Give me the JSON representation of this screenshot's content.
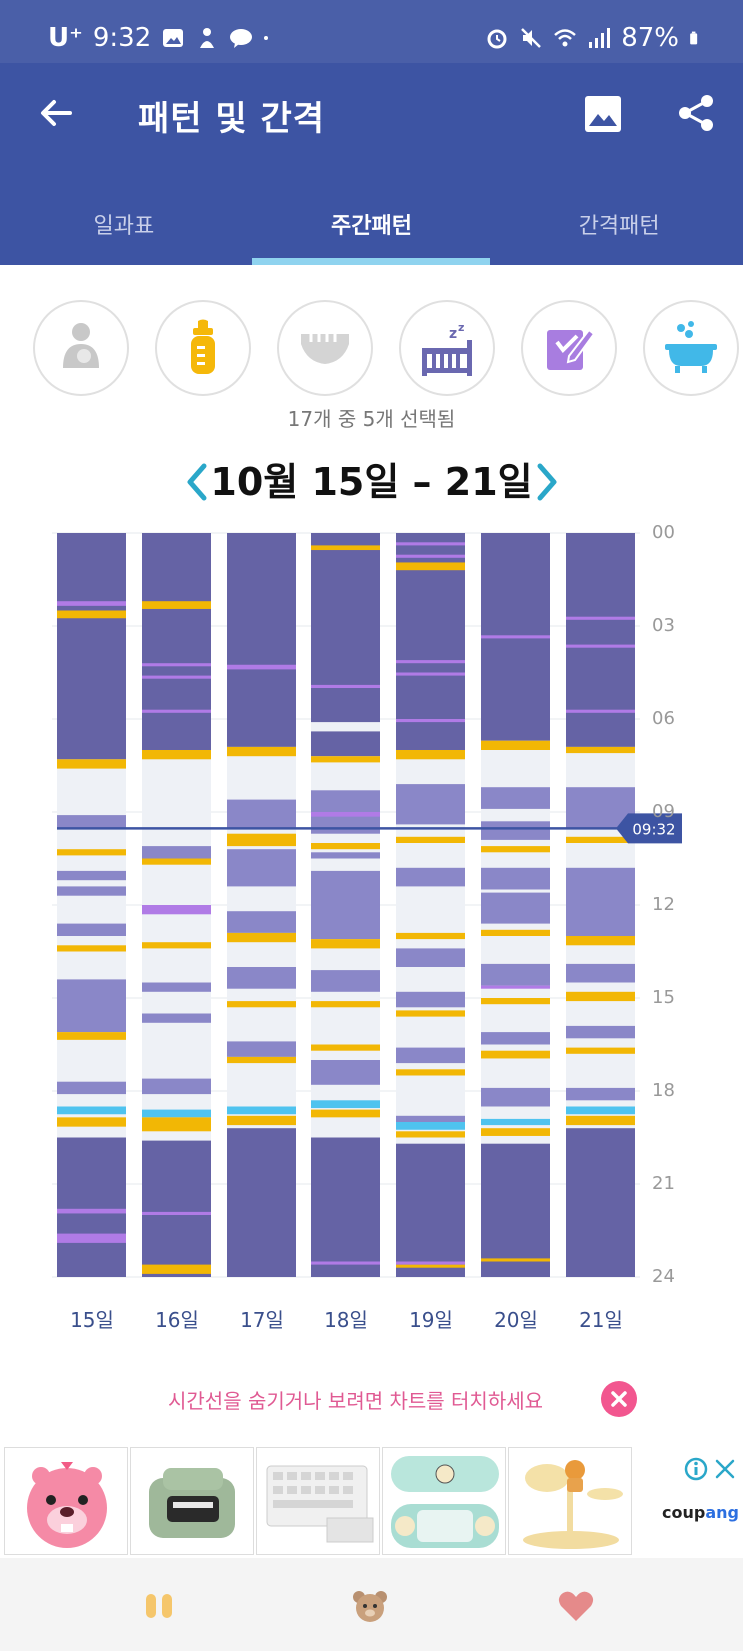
{
  "status_bar": {
    "carrier": "U⁺",
    "time": "9:32",
    "battery": "87%"
  },
  "app_bar": {
    "title": "패턴 및 간격",
    "tabs": [
      {
        "label": "일과표",
        "active": false
      },
      {
        "label": "주간패턴",
        "active": true
      },
      {
        "label": "간격패턴",
        "active": false
      }
    ]
  },
  "categories": [
    {
      "icon": "nursing-icon",
      "selected": false
    },
    {
      "icon": "bottle-icon",
      "selected": true,
      "color": "#f5b80a"
    },
    {
      "icon": "diaper-icon",
      "selected": false
    },
    {
      "icon": "sleep-icon",
      "selected": true,
      "color": "#6a68b0"
    },
    {
      "icon": "note-icon",
      "selected": true,
      "color": "#a87de0"
    },
    {
      "icon": "bath-icon",
      "selected": true,
      "color": "#41b8e8"
    }
  ],
  "selection_count": "17개 중 5개 선택됨",
  "week_range": "10월 15일 – 21일",
  "chart_data": {
    "type": "timeline",
    "y_axis_labels": [
      "00",
      "03",
      "06",
      "09",
      "12",
      "15",
      "18",
      "21",
      "24"
    ],
    "y_range_hours": [
      0,
      24
    ],
    "current_time_label": "09:32",
    "current_time_hours": 9.53,
    "days": [
      "15일",
      "16일",
      "17일",
      "18일",
      "19일",
      "20일",
      "21일"
    ],
    "colors": {
      "sleep": "#6563a5",
      "sleep_light": "#8a87c8",
      "feed": "#f2b705",
      "note": "#b07be6",
      "bath": "#4fc3ef",
      "empty": "#eef1f6"
    },
    "columns": [
      {
        "day": "15일",
        "segments": [
          {
            "type": "sleep",
            "start": 0,
            "end": 7.3
          },
          {
            "type": "note",
            "start": 2.2,
            "end": 2.35
          },
          {
            "type": "feed",
            "start": 2.5,
            "end": 2.75
          },
          {
            "type": "feed",
            "start": 7.3,
            "end": 7.6
          },
          {
            "type": "sleep_light",
            "start": 9.1,
            "end": 9.5
          },
          {
            "type": "feed",
            "start": 10.2,
            "end": 10.4
          },
          {
            "type": "sleep_light",
            "start": 10.9,
            "end": 11.2
          },
          {
            "type": "sleep_light",
            "start": 11.4,
            "end": 11.7
          },
          {
            "type": "sleep_light",
            "start": 12.6,
            "end": 13.0
          },
          {
            "type": "feed",
            "start": 13.3,
            "end": 13.5
          },
          {
            "type": "sleep_light",
            "start": 14.4,
            "end": 16.1
          },
          {
            "type": "feed",
            "start": 16.1,
            "end": 16.35
          },
          {
            "type": "sleep_light",
            "start": 17.7,
            "end": 18.1
          },
          {
            "type": "bath",
            "start": 18.5,
            "end": 18.75
          },
          {
            "type": "feed",
            "start": 18.85,
            "end": 19.15
          },
          {
            "type": "sleep",
            "start": 19.5,
            "end": 24
          },
          {
            "type": "note",
            "start": 21.8,
            "end": 21.95
          },
          {
            "type": "note",
            "start": 22.6,
            "end": 22.9
          }
        ]
      },
      {
        "day": "16일",
        "segments": [
          {
            "type": "sleep",
            "start": 0,
            "end": 7.0
          },
          {
            "type": "feed",
            "start": 2.2,
            "end": 2.45
          },
          {
            "type": "note",
            "start": 4.2,
            "end": 4.3
          },
          {
            "type": "note",
            "start": 4.6,
            "end": 4.7
          },
          {
            "type": "note",
            "start": 5.7,
            "end": 5.8
          },
          {
            "type": "feed",
            "start": 7.0,
            "end": 7.3
          },
          {
            "type": "sleep_light",
            "start": 10.1,
            "end": 10.5
          },
          {
            "type": "feed",
            "start": 10.5,
            "end": 10.7
          },
          {
            "type": "note",
            "start": 12.0,
            "end": 12.3
          },
          {
            "type": "feed",
            "start": 13.2,
            "end": 13.4
          },
          {
            "type": "sleep_light",
            "start": 14.5,
            "end": 14.8
          },
          {
            "type": "sleep_light",
            "start": 15.5,
            "end": 15.8
          },
          {
            "type": "sleep_light",
            "start": 17.6,
            "end": 18.1
          },
          {
            "type": "bath",
            "start": 18.6,
            "end": 18.85
          },
          {
            "type": "feed",
            "start": 18.85,
            "end": 19.3
          },
          {
            "type": "sleep",
            "start": 19.6,
            "end": 24
          },
          {
            "type": "note",
            "start": 21.9,
            "end": 22.0
          },
          {
            "type": "feed",
            "start": 23.6,
            "end": 23.9
          }
        ]
      },
      {
        "day": "17일",
        "segments": [
          {
            "type": "sleep",
            "start": 0,
            "end": 6.9
          },
          {
            "type": "note",
            "start": 4.25,
            "end": 4.4
          },
          {
            "type": "feed",
            "start": 6.9,
            "end": 7.2
          },
          {
            "type": "sleep_light",
            "start": 8.6,
            "end": 9.5
          },
          {
            "type": "feed",
            "start": 9.7,
            "end": 10.1
          },
          {
            "type": "sleep_light",
            "start": 10.2,
            "end": 11.4
          },
          {
            "type": "sleep_light",
            "start": 12.2,
            "end": 12.9
          },
          {
            "type": "feed",
            "start": 12.9,
            "end": 13.2
          },
          {
            "type": "sleep_light",
            "start": 14.0,
            "end": 14.7
          },
          {
            "type": "feed",
            "start": 15.1,
            "end": 15.3
          },
          {
            "type": "sleep_light",
            "start": 16.4,
            "end": 16.9
          },
          {
            "type": "feed",
            "start": 16.9,
            "end": 17.1
          },
          {
            "type": "bath",
            "start": 18.5,
            "end": 18.75
          },
          {
            "type": "feed",
            "start": 18.8,
            "end": 19.1
          },
          {
            "type": "sleep",
            "start": 19.2,
            "end": 24
          }
        ]
      },
      {
        "day": "18일",
        "segments": [
          {
            "type": "sleep",
            "start": 0,
            "end": 6.1
          },
          {
            "type": "feed",
            "start": 0.4,
            "end": 0.55
          },
          {
            "type": "note",
            "start": 4.9,
            "end": 5.0
          },
          {
            "type": "sleep",
            "start": 6.4,
            "end": 7.2
          },
          {
            "type": "feed",
            "start": 7.2,
            "end": 7.4
          },
          {
            "type": "sleep_light",
            "start": 8.3,
            "end": 9.7
          },
          {
            "type": "note",
            "start": 9.0,
            "end": 9.15
          },
          {
            "type": "feed",
            "start": 10.0,
            "end": 10.2
          },
          {
            "type": "sleep_light",
            "start": 10.3,
            "end": 10.5
          },
          {
            "type": "sleep_light",
            "start": 10.9,
            "end": 13.1
          },
          {
            "type": "feed",
            "start": 13.1,
            "end": 13.4
          },
          {
            "type": "sleep_light",
            "start": 14.1,
            "end": 14.8
          },
          {
            "type": "feed",
            "start": 15.1,
            "end": 15.3
          },
          {
            "type": "feed",
            "start": 16.5,
            "end": 16.7
          },
          {
            "type": "sleep_light",
            "start": 17.0,
            "end": 17.8
          },
          {
            "type": "bath",
            "start": 18.3,
            "end": 18.55
          },
          {
            "type": "feed",
            "start": 18.6,
            "end": 18.85
          },
          {
            "type": "sleep",
            "start": 19.5,
            "end": 24
          },
          {
            "type": "note",
            "start": 23.5,
            "end": 23.6
          }
        ]
      },
      {
        "day": "19일",
        "segments": [
          {
            "type": "sleep",
            "start": 0,
            "end": 7.0
          },
          {
            "type": "note",
            "start": 0.3,
            "end": 0.4
          },
          {
            "type": "note",
            "start": 0.7,
            "end": 0.8
          },
          {
            "type": "feed",
            "start": 0.95,
            "end": 1.2
          },
          {
            "type": "note",
            "start": 4.1,
            "end": 4.2
          },
          {
            "type": "note",
            "start": 4.5,
            "end": 4.6
          },
          {
            "type": "note",
            "start": 6.0,
            "end": 6.1
          },
          {
            "type": "feed",
            "start": 7.0,
            "end": 7.3
          },
          {
            "type": "sleep_light",
            "start": 8.1,
            "end": 9.4
          },
          {
            "type": "feed",
            "start": 9.8,
            "end": 10.0
          },
          {
            "type": "sleep_light",
            "start": 10.8,
            "end": 11.4
          },
          {
            "type": "feed",
            "start": 12.9,
            "end": 13.1
          },
          {
            "type": "sleep_light",
            "start": 13.4,
            "end": 14.0
          },
          {
            "type": "sleep_light",
            "start": 14.8,
            "end": 15.3
          },
          {
            "type": "feed",
            "start": 15.4,
            "end": 15.6
          },
          {
            "type": "sleep_light",
            "start": 16.6,
            "end": 17.1
          },
          {
            "type": "feed",
            "start": 17.3,
            "end": 17.5
          },
          {
            "type": "sleep_light",
            "start": 18.8,
            "end": 19.0
          },
          {
            "type": "bath",
            "start": 19.0,
            "end": 19.25
          },
          {
            "type": "feed",
            "start": 19.3,
            "end": 19.5
          },
          {
            "type": "sleep",
            "start": 19.7,
            "end": 24
          },
          {
            "type": "feed",
            "start": 23.6,
            "end": 23.7
          },
          {
            "type": "note",
            "start": 23.5,
            "end": 23.6
          }
        ]
      },
      {
        "day": "20일",
        "segments": [
          {
            "type": "sleep",
            "start": 0,
            "end": 6.7
          },
          {
            "type": "note",
            "start": 3.3,
            "end": 3.4
          },
          {
            "type": "feed",
            "start": 6.7,
            "end": 7.0
          },
          {
            "type": "sleep_light",
            "start": 8.2,
            "end": 8.9
          },
          {
            "type": "sleep_light",
            "start": 9.3,
            "end": 9.9
          },
          {
            "type": "feed",
            "start": 10.1,
            "end": 10.3
          },
          {
            "type": "sleep_light",
            "start": 10.8,
            "end": 11.5
          },
          {
            "type": "sleep_light",
            "start": 11.6,
            "end": 12.6
          },
          {
            "type": "feed",
            "start": 12.8,
            "end": 13.0
          },
          {
            "type": "sleep_light",
            "start": 13.9,
            "end": 14.6
          },
          {
            "type": "note",
            "start": 14.6,
            "end": 14.7
          },
          {
            "type": "feed",
            "start": 15.0,
            "end": 15.2
          },
          {
            "type": "sleep_light",
            "start": 16.1,
            "end": 16.5
          },
          {
            "type": "feed",
            "start": 16.7,
            "end": 16.95
          },
          {
            "type": "sleep_light",
            "start": 17.9,
            "end": 18.5
          },
          {
            "type": "bath",
            "start": 18.9,
            "end": 19.1
          },
          {
            "type": "feed",
            "start": 19.2,
            "end": 19.45
          },
          {
            "type": "sleep",
            "start": 19.7,
            "end": 24
          },
          {
            "type": "feed",
            "start": 23.4,
            "end": 23.5
          }
        ]
      },
      {
        "day": "21일",
        "segments": [
          {
            "type": "sleep",
            "start": 0,
            "end": 6.9
          },
          {
            "type": "note",
            "start": 2.7,
            "end": 2.8
          },
          {
            "type": "note",
            "start": 3.6,
            "end": 3.7
          },
          {
            "type": "note",
            "start": 5.7,
            "end": 5.8
          },
          {
            "type": "feed",
            "start": 6.9,
            "end": 7.1
          },
          {
            "type": "sleep_light",
            "start": 8.2,
            "end": 9.5
          },
          {
            "type": "feed",
            "start": 9.8,
            "end": 10.0
          },
          {
            "type": "sleep_light",
            "start": 10.8,
            "end": 13.0
          },
          {
            "type": "feed",
            "start": 13.0,
            "end": 13.3
          },
          {
            "type": "sleep_light",
            "start": 13.9,
            "end": 14.5
          },
          {
            "type": "feed",
            "start": 14.8,
            "end": 15.1
          },
          {
            "type": "sleep_light",
            "start": 15.9,
            "end": 16.3
          },
          {
            "type": "feed",
            "start": 16.6,
            "end": 16.8
          },
          {
            "type": "sleep_light",
            "start": 17.9,
            "end": 18.3
          },
          {
            "type": "bath",
            "start": 18.5,
            "end": 18.75
          },
          {
            "type": "feed",
            "start": 18.8,
            "end": 19.1
          },
          {
            "type": "sleep",
            "start": 19.2,
            "end": 24
          }
        ]
      }
    ]
  },
  "hint": {
    "text": "시간선을 숨기거나 보려면 차트를 터치하세요"
  },
  "ad": {
    "brand_prefix": "coup",
    "brand_suffix": "ang",
    "tiles": [
      "ad-product-1",
      "ad-product-2",
      "ad-product-3",
      "ad-product-4",
      "ad-product-5"
    ]
  },
  "bottom_nav": [
    "pause-icon",
    "bear-icon",
    "heart-icon"
  ]
}
